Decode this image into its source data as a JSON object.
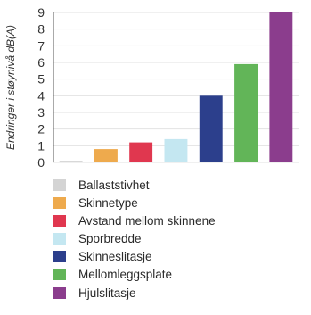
{
  "chart_data": {
    "type": "bar",
    "ylabel": "Endringer i støynivå dB(A)",
    "ylim": [
      0,
      9
    ],
    "yticks": [
      0,
      1,
      2,
      3,
      4,
      5,
      6,
      7,
      8,
      9
    ],
    "grid": true,
    "legend_position": "bottom",
    "categories": [
      "Ballaststivhet",
      "Skinnetype",
      "Avstand mellom skinnene",
      "Sporbredde",
      "Skinneslitasje",
      "Mellomleggsplate",
      "Hjulslitasje"
    ],
    "values": [
      0.1,
      0.8,
      1.2,
      1.4,
      4.0,
      5.9,
      9.0
    ],
    "colors": [
      "#d4d4d4",
      "#eeaa4d",
      "#e0374f",
      "#c4e7f1",
      "#2c3f8c",
      "#62b558",
      "#8b3d8d"
    ]
  }
}
